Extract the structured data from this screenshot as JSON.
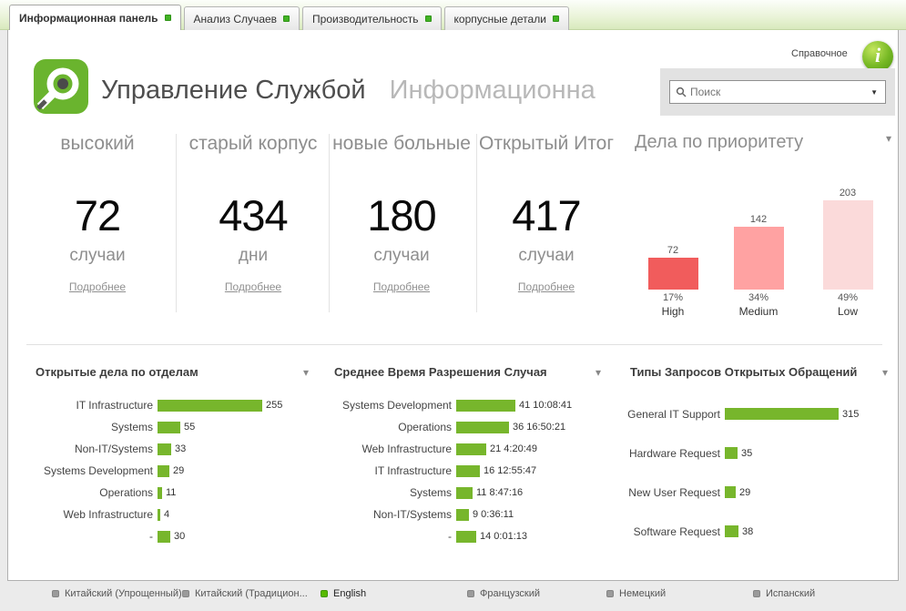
{
  "tabs": [
    {
      "label": "Информационная панель",
      "active": true
    },
    {
      "label": "Анализ Случаев",
      "active": false
    },
    {
      "label": "Производительность",
      "active": false
    },
    {
      "label": "корпусные детали",
      "active": false
    }
  ],
  "header": {
    "title": "Управление Службой",
    "subtitle": "Информационна",
    "help_label": "Справочное",
    "search_placeholder": "Поиск"
  },
  "icons": {
    "info": "i",
    "caret_down": "▾",
    "combo_caret": "▼"
  },
  "kpis": [
    {
      "title": "высокий",
      "value": "72",
      "unit": "случаи",
      "link": "Подробнее"
    },
    {
      "title": "старый корпус",
      "value": "434",
      "unit": "дни",
      "link": "Подробнее"
    },
    {
      "title": "новые больные",
      "value": "180",
      "unit": "случаи",
      "link": "Подробнее"
    },
    {
      "title": "Открытый Итог",
      "value": "417",
      "unit": "случаи",
      "link": "Подробнее"
    }
  ],
  "chart_data": [
    {
      "type": "bar",
      "title": "Дела по приоритету",
      "categories": [
        "High",
        "Medium",
        "Low"
      ],
      "values": [
        72,
        142,
        203
      ],
      "percent_labels": [
        "17%",
        "34%",
        "49%"
      ],
      "colors": [
        "#f15c5c",
        "#ffa2a2",
        "#fbdada"
      ],
      "ylim": [
        0,
        210
      ],
      "legend": "none",
      "grid": false
    },
    {
      "type": "bar",
      "orientation": "horizontal",
      "title": "Открытые дела по отделам",
      "categories": [
        "IT Infrastructure",
        "Systems",
        "Non-IT/Systems",
        "Systems Development",
        "Operations",
        "Web Infrastructure",
        "-"
      ],
      "values": [
        255,
        55,
        33,
        29,
        11,
        4,
        30
      ],
      "bar_color": "#77b62c",
      "xlim": [
        0,
        270
      ]
    },
    {
      "type": "bar",
      "orientation": "horizontal",
      "title": "Среднее Время Разрешения Случая",
      "categories": [
        "Systems Development",
        "Operations",
        "Web Infrastructure",
        "IT Infrastructure",
        "Systems",
        "Non-IT/Systems",
        "-"
      ],
      "values": [
        41.42,
        36.7,
        21.18,
        16.54,
        11.37,
        9.03,
        14.0
      ],
      "value_labels": [
        "41 10:08:41",
        "36 16:50:21",
        "21 4:20:49",
        "16 12:55:47",
        "11 8:47:16",
        "9 0:36:11",
        "14 0:01:13"
      ],
      "bar_color": "#77b62c",
      "xlim": [
        0,
        45
      ]
    },
    {
      "type": "bar",
      "orientation": "horizontal",
      "title": "Типы Запросов Открытых Обращений",
      "categories": [
        "General IT Support",
        "Hardware Request",
        "New User Request",
        "Software Request"
      ],
      "values": [
        315,
        35,
        29,
        38
      ],
      "bar_color": "#77b62c",
      "xlim": [
        0,
        330
      ]
    }
  ],
  "footer": {
    "languages": [
      {
        "label": "Китайский (Упрощенный)",
        "active": false
      },
      {
        "label": "Китайский (Традицион...",
        "active": false
      },
      {
        "label": "English",
        "active": true
      },
      {
        "label": "Французский",
        "active": false
      },
      {
        "label": "Немецкий",
        "active": false
      },
      {
        "label": "Испанский",
        "active": false
      }
    ]
  }
}
